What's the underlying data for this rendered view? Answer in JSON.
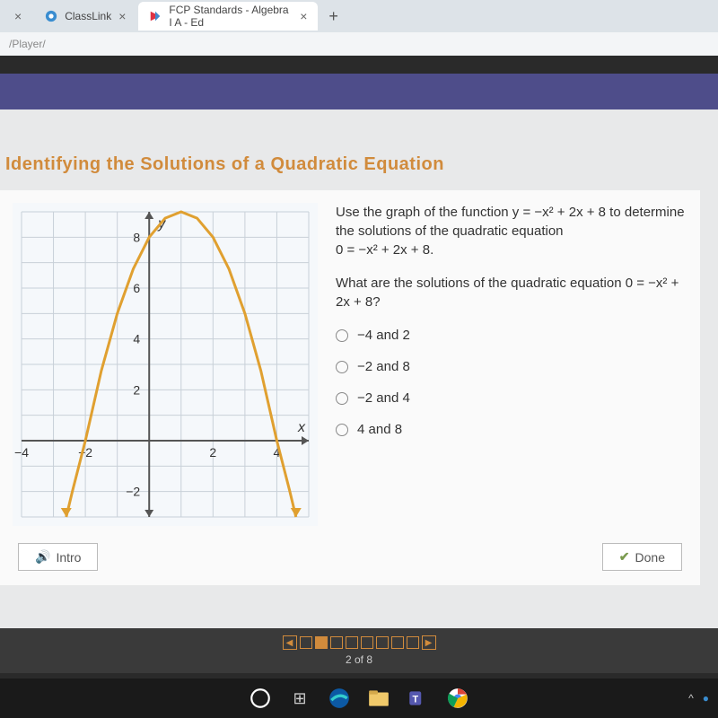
{
  "tabs": [
    {
      "label": "",
      "active": false
    },
    {
      "label": "ClassLink",
      "active": false
    },
    {
      "label": "FCP Standards - Algebra I A - Ed",
      "active": true
    }
  ],
  "url_fragment": "/Player/",
  "lesson_title": "Identifying the Solutions of a Quadratic Equation",
  "prompt_line1": "Use the graph of the function y = −x² + 2x + 8 to determine the solutions of the quadratic equation",
  "prompt_line2": "0 = −x² + 2x + 8.",
  "question": "What are the solutions of the quadratic equation 0 = −x² + 2x + 8?",
  "options": [
    "−4 and 2",
    "−2 and 8",
    "−2 and 4",
    "4 and 8"
  ],
  "buttons": {
    "intro": "Intro",
    "done": "Done"
  },
  "progress": {
    "label": "2 of 8",
    "current": 2,
    "total": 8
  },
  "graph": {
    "x_min": -4,
    "x_max": 5,
    "y_min": -3,
    "y_max": 9,
    "x_ticks": [
      -4,
      -2,
      2,
      4
    ],
    "y_ticks": [
      -2,
      2,
      4,
      6,
      8
    ],
    "x_label": "x",
    "y_label": "y",
    "curve_color": "#e0a030",
    "curve_width": 3,
    "axis_color": "#555555",
    "grid_color": "#c8d0d8",
    "bg_color": "#f5f8fb",
    "tick_font": 14,
    "points": [
      [
        -2.6,
        -3
      ],
      [
        -2.4,
        -1.96
      ],
      [
        -2,
        0
      ],
      [
        -1.5,
        2.75
      ],
      [
        -1,
        5
      ],
      [
        -0.5,
        6.75
      ],
      [
        0,
        8
      ],
      [
        0.5,
        8.75
      ],
      [
        1,
        9
      ],
      [
        1.5,
        8.75
      ],
      [
        2,
        8
      ],
      [
        2.5,
        6.75
      ],
      [
        3,
        5
      ],
      [
        3.5,
        2.75
      ],
      [
        4,
        0
      ],
      [
        4.4,
        -1.96
      ],
      [
        4.6,
        -3
      ]
    ]
  },
  "colors": {
    "accent": "#d18b3c",
    "purple": "#4e4d8a"
  }
}
